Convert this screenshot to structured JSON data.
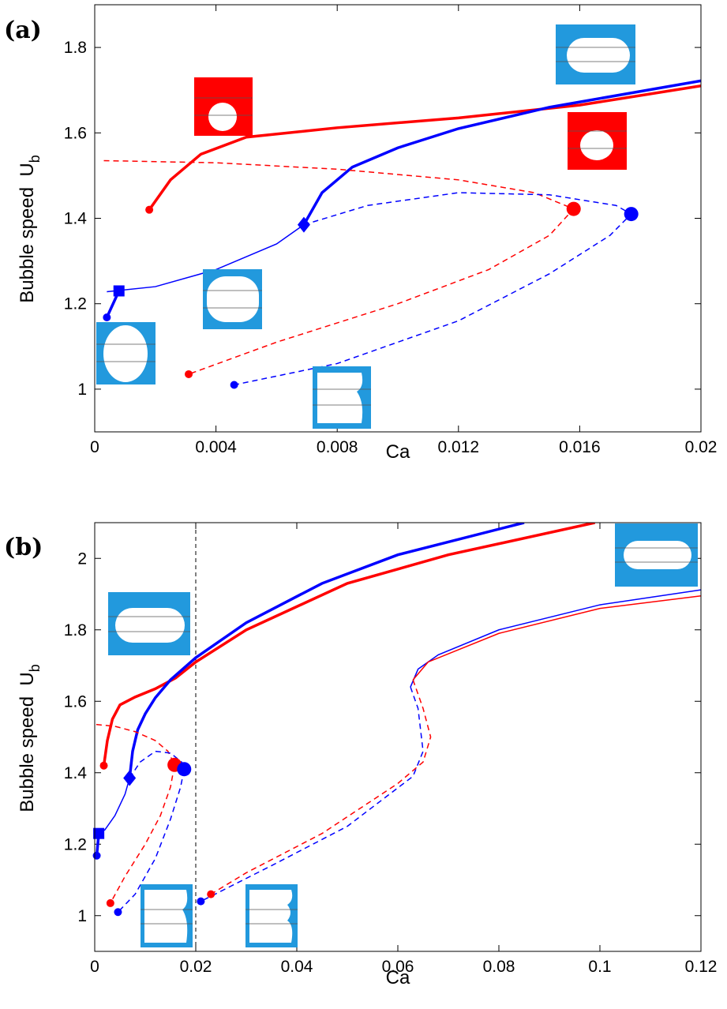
{
  "chart_data": [
    {
      "type": "line",
      "panel_label": "(a)",
      "xlabel": "Ca",
      "ylabel": "Bubble speed  U",
      "ylabel_sub": "b",
      "xlim": [
        0,
        0.02
      ],
      "ylim": [
        0.9,
        1.9
      ],
      "xticks": [
        0,
        0.004,
        0.008,
        0.012,
        0.016,
        0.02
      ],
      "yticks": [
        1,
        1.2,
        1.4,
        1.6,
        1.8
      ],
      "series": [
        {
          "color": "#ff0000",
          "style": "solid",
          "width": 3.5,
          "x": [
            0.0018,
            0.0025,
            0.0035,
            0.005,
            0.008,
            0.012,
            0.016,
            0.02
          ],
          "values": [
            1.42,
            1.49,
            1.55,
            1.59,
            1.612,
            1.635,
            1.665,
            1.71
          ]
        },
        {
          "color": "#0000ff",
          "style": "solid",
          "width": 3.5,
          "x": [
            0.0069,
            0.0075,
            0.0085,
            0.01,
            0.012,
            0.015,
            0.02
          ],
          "values": [
            1.385,
            1.46,
            1.52,
            1.565,
            1.61,
            1.66,
            1.722
          ]
        },
        {
          "color": "#0000ff",
          "style": "solid",
          "width": 3.5,
          "x": [
            0.0004,
            0.0008
          ],
          "values": [
            1.168,
            1.23
          ]
        },
        {
          "color": "#0000ff",
          "style": "solid",
          "width": 1.5,
          "x": [
            0.0004,
            0.002,
            0.004,
            0.006,
            0.0069
          ],
          "values": [
            1.228,
            1.24,
            1.28,
            1.34,
            1.385
          ]
        },
        {
          "color": "#ff0000",
          "style": "dashed",
          "width": 1.5,
          "x": [
            0.0003,
            0.004,
            0.008,
            0.012,
            0.0145,
            0.0158,
            0.015,
            0.013,
            0.01,
            0.006,
            0.0031
          ],
          "values": [
            1.535,
            1.53,
            1.515,
            1.49,
            1.46,
            1.422,
            1.36,
            1.28,
            1.2,
            1.11,
            1.035
          ]
        },
        {
          "color": "#0000ff",
          "style": "dashed",
          "width": 1.5,
          "x": [
            0.0069,
            0.009,
            0.012,
            0.015,
            0.0172,
            0.0177,
            0.017,
            0.015,
            0.012,
            0.008,
            0.0046
          ],
          "values": [
            1.385,
            1.43,
            1.46,
            1.455,
            1.43,
            1.41,
            1.36,
            1.27,
            1.16,
            1.06,
            1.01
          ]
        }
      ],
      "points": [
        {
          "marker": "dot",
          "color": "#ff0000",
          "x": 0.0018,
          "y": 1.42
        },
        {
          "marker": "big-dot",
          "color": "#ff0000",
          "x": 0.0158,
          "y": 1.422
        },
        {
          "marker": "dot",
          "color": "#ff0000",
          "x": 0.0031,
          "y": 1.035
        },
        {
          "marker": "big-dot",
          "color": "#0000ff",
          "x": 0.0177,
          "y": 1.41
        },
        {
          "marker": "dot",
          "color": "#0000ff",
          "x": 0.0004,
          "y": 1.168
        },
        {
          "marker": "dot",
          "color": "#0000ff",
          "x": 0.0046,
          "y": 1.01
        },
        {
          "marker": "diamond",
          "color": "#0000ff",
          "x": 0.0069,
          "y": 1.385
        },
        {
          "marker": "square",
          "color": "#0000ff",
          "x": 0.0008,
          "y": 1.23
        }
      ]
    },
    {
      "type": "line",
      "panel_label": "(b)",
      "xlabel": "Ca",
      "ylabel": "Bubble speed  U",
      "ylabel_sub": "b",
      "xlim": [
        0,
        0.12
      ],
      "ylim": [
        0.9,
        2.1
      ],
      "xticks": [
        0,
        0.02,
        0.04,
        0.06,
        0.08,
        0.1,
        0.12
      ],
      "yticks": [
        1,
        1.2,
        1.4,
        1.6,
        1.8,
        2
      ],
      "vline": 0.02,
      "series": [
        {
          "color": "#ff0000",
          "style": "solid",
          "width": 3.5,
          "x": [
            0.0018,
            0.0025,
            0.0035,
            0.005,
            0.008,
            0.012,
            0.016,
            0.02,
            0.03,
            0.05,
            0.07,
            0.099
          ],
          "values": [
            1.42,
            1.49,
            1.55,
            1.59,
            1.612,
            1.635,
            1.665,
            1.71,
            1.8,
            1.93,
            2.01,
            2.1
          ]
        },
        {
          "color": "#0000ff",
          "style": "solid",
          "width": 3.5,
          "x": [
            0.0069,
            0.0075,
            0.0085,
            0.01,
            0.012,
            0.015,
            0.02,
            0.03,
            0.045,
            0.06,
            0.085
          ],
          "values": [
            1.385,
            1.46,
            1.52,
            1.565,
            1.61,
            1.66,
            1.722,
            1.82,
            1.93,
            2.01,
            2.1
          ]
        },
        {
          "color": "#0000ff",
          "style": "solid",
          "width": 3.5,
          "x": [
            0.0004,
            0.0008
          ],
          "values": [
            1.168,
            1.23
          ]
        },
        {
          "color": "#0000ff",
          "style": "solid",
          "width": 1.5,
          "x": [
            0.0004,
            0.002,
            0.004,
            0.006,
            0.0069
          ],
          "values": [
            1.228,
            1.24,
            1.28,
            1.34,
            1.385
          ]
        },
        {
          "color": "#ff0000",
          "style": "dashed",
          "width": 1.5,
          "x": [
            0.0003,
            0.004,
            0.008,
            0.012,
            0.0145,
            0.0158,
            0.015,
            0.013,
            0.01,
            0.006,
            0.0031
          ],
          "values": [
            1.535,
            1.53,
            1.515,
            1.49,
            1.46,
            1.422,
            1.36,
            1.28,
            1.2,
            1.11,
            1.035
          ]
        },
        {
          "color": "#0000ff",
          "style": "dashed",
          "width": 1.5,
          "x": [
            0.0069,
            0.009,
            0.012,
            0.015,
            0.0172,
            0.0177,
            0.017,
            0.015,
            0.012,
            0.008,
            0.0046
          ],
          "values": [
            1.385,
            1.43,
            1.46,
            1.455,
            1.43,
            1.41,
            1.36,
            1.27,
            1.16,
            1.06,
            1.01
          ]
        },
        {
          "color": "#0000ff",
          "style": "solid",
          "width": 1.5,
          "x": [
            0.0625,
            0.064,
            0.068,
            0.08,
            0.1,
            0.12
          ],
          "values": [
            1.64,
            1.69,
            1.73,
            1.8,
            1.87,
            1.912
          ]
        },
        {
          "color": "#ff0000",
          "style": "solid",
          "width": 1.5,
          "x": [
            0.063,
            0.066,
            0.08,
            0.1,
            0.12
          ],
          "values": [
            1.66,
            1.71,
            1.79,
            1.86,
            1.895
          ]
        },
        {
          "color": "#0000ff",
          "style": "dashed",
          "width": 1.5,
          "x": [
            0.0625,
            0.064,
            0.0645,
            0.065,
            0.063,
            0.05,
            0.035,
            0.021
          ],
          "values": [
            1.64,
            1.58,
            1.52,
            1.46,
            1.39,
            1.25,
            1.14,
            1.04
          ]
        },
        {
          "color": "#ff0000",
          "style": "dashed",
          "width": 1.5,
          "x": [
            0.063,
            0.065,
            0.0665,
            0.065,
            0.06,
            0.045,
            0.03,
            0.023
          ],
          "values": [
            1.66,
            1.58,
            1.5,
            1.43,
            1.37,
            1.23,
            1.12,
            1.06
          ]
        }
      ],
      "points": [
        {
          "marker": "dot",
          "color": "#ff0000",
          "x": 0.0018,
          "y": 1.42
        },
        {
          "marker": "big-dot",
          "color": "#ff0000",
          "x": 0.0158,
          "y": 1.422
        },
        {
          "marker": "dot",
          "color": "#ff0000",
          "x": 0.0031,
          "y": 1.035
        },
        {
          "marker": "big-dot",
          "color": "#0000ff",
          "x": 0.0177,
          "y": 1.41
        },
        {
          "marker": "dot",
          "color": "#0000ff",
          "x": 0.0004,
          "y": 1.168
        },
        {
          "marker": "dot",
          "color": "#0000ff",
          "x": 0.0046,
          "y": 1.01
        },
        {
          "marker": "diamond",
          "color": "#0000ff",
          "x": 0.0069,
          "y": 1.385
        },
        {
          "marker": "square",
          "color": "#0000ff",
          "x": 0.0008,
          "y": 1.23
        },
        {
          "marker": "dot",
          "color": "#0000ff",
          "x": 0.021,
          "y": 1.04
        },
        {
          "marker": "dot",
          "color": "#ff0000",
          "x": 0.023,
          "y": 1.06
        }
      ]
    }
  ]
}
